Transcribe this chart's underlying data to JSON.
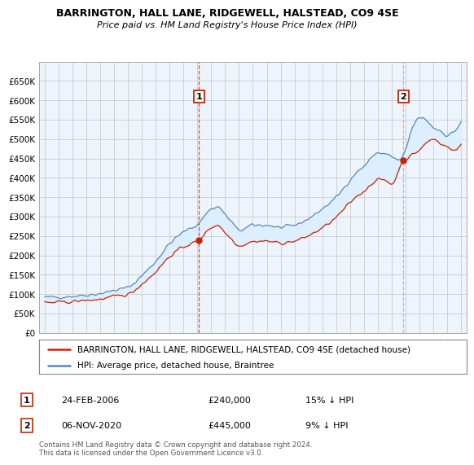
{
  "title": "BARRINGTON, HALL LANE, RIDGEWELL, HALSTEAD, CO9 4SE",
  "subtitle": "Price paid vs. HM Land Registry's House Price Index (HPI)",
  "footer": "Contains HM Land Registry data © Crown copyright and database right 2024.\nThis data is licensed under the Open Government Licence v3.0.",
  "legend_line1": "BARRINGTON, HALL LANE, RIDGEWELL, HALSTEAD, CO9 4SE (detached house)",
  "legend_line2": "HPI: Average price, detached house, Braintree",
  "annotation1": {
    "num": "1",
    "date": "24-FEB-2006",
    "price": "£240,000",
    "pct": "15% ↓ HPI",
    "x_year": 2006.12,
    "y_val": 240000
  },
  "annotation2": {
    "num": "2",
    "date": "06-NOV-2020",
    "price": "£445,000",
    "pct": "9% ↓ HPI",
    "x_year": 2020.85,
    "y_val": 445000
  },
  "red_color": "#cc2200",
  "blue_color": "#5588bb",
  "fill_color": "#ddeeff",
  "vline1_color": "#cc2200",
  "vline2_color": "#aaaaaa",
  "grid_color": "#cccccc",
  "bg_color": "#ffffff",
  "chart_bg": "#eef4fb",
  "ylim": [
    0,
    700000
  ],
  "yticks": [
    0,
    50000,
    100000,
    150000,
    200000,
    250000,
    300000,
    350000,
    400000,
    450000,
    500000,
    550000,
    600000,
    650000
  ],
  "xlim": [
    1994.6,
    2025.4
  ],
  "xticks": [
    1995,
    1996,
    1997,
    1998,
    1999,
    2000,
    2001,
    2002,
    2003,
    2004,
    2005,
    2006,
    2007,
    2008,
    2009,
    2010,
    2011,
    2012,
    2013,
    2014,
    2015,
    2016,
    2017,
    2018,
    2019,
    2020,
    2021,
    2022,
    2023,
    2024,
    2025
  ]
}
